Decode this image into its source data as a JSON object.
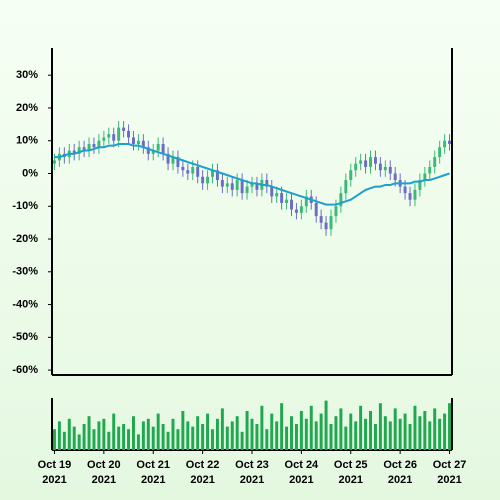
{
  "chart_data": {
    "type": "candlestick",
    "x": [
      0,
      0.1,
      0.2,
      0.3,
      0.4,
      0.5,
      0.6,
      0.7,
      0.8,
      0.9,
      1,
      1.1,
      1.2,
      1.3,
      1.4,
      1.5,
      1.6,
      1.7,
      1.8,
      1.9,
      2,
      2.1,
      2.2,
      2.3,
      2.4,
      2.5,
      2.6,
      2.7,
      2.8,
      2.9,
      3,
      3.1,
      3.2,
      3.3,
      3.4,
      3.5,
      3.6,
      3.7,
      3.8,
      3.9,
      4,
      4.1,
      4.2,
      4.3,
      4.4,
      4.5,
      4.6,
      4.7,
      4.8,
      4.9,
      5,
      5.1,
      5.2,
      5.3,
      5.4,
      5.5,
      5.6,
      5.7,
      5.8,
      5.9,
      6,
      6.1,
      6.2,
      6.3,
      6.4,
      6.5,
      6.6,
      6.7,
      6.8,
      6.9,
      7,
      7.1,
      7.2,
      7.3,
      7.4,
      7.5,
      7.6,
      7.7,
      7.8,
      7.9,
      8
    ],
    "open": [
      3,
      4,
      6,
      5,
      7,
      6,
      8,
      7,
      9,
      8,
      10,
      11,
      12,
      10,
      14,
      13,
      11,
      9,
      10,
      8,
      6,
      7,
      9,
      6,
      3,
      5,
      2,
      1,
      0,
      2,
      -1,
      -3,
      -1,
      1,
      -2,
      -4,
      -3,
      -5,
      -2,
      -6,
      -4,
      -3,
      -5,
      -2,
      -4,
      -7,
      -6,
      -9,
      -8,
      -11,
      -12,
      -10,
      -7,
      -9,
      -13,
      -15,
      -17,
      -13,
      -10,
      -6,
      -2,
      1,
      3,
      4,
      2,
      5,
      3,
      1,
      2,
      0,
      -2,
      -4,
      -6,
      -8,
      -5,
      -2,
      0,
      2,
      5,
      8,
      10
    ],
    "high": [
      6,
      8,
      8,
      9,
      9,
      10,
      10,
      11,
      11,
      12,
      13,
      14,
      14,
      16,
      16,
      15,
      13,
      12,
      12,
      10,
      9,
      11,
      11,
      8,
      7,
      7,
      4,
      3,
      4,
      4,
      1,
      1,
      3,
      3,
      0,
      -1,
      -1,
      0,
      0,
      -2,
      -1,
      -1,
      0,
      0,
      -2,
      -4,
      -4,
      -6,
      -6,
      -9,
      -8,
      -5,
      -5,
      -7,
      -11,
      -13,
      -11,
      -8,
      -4,
      0,
      3,
      5,
      6,
      6,
      7,
      7,
      5,
      4,
      4,
      2,
      0,
      -2,
      -4,
      -3,
      0,
      2,
      4,
      7,
      10,
      12,
      12
    ],
    "low": [
      1,
      2,
      3,
      3,
      4,
      4,
      5,
      5,
      6,
      6,
      8,
      9,
      8,
      8,
      11,
      9,
      7,
      7,
      6,
      4,
      4,
      5,
      4,
      1,
      1,
      0,
      -1,
      -2,
      -2,
      -3,
      -5,
      -5,
      -3,
      -4,
      -6,
      -6,
      -7,
      -7,
      -8,
      -8,
      -6,
      -7,
      -7,
      -6,
      -9,
      -9,
      -11,
      -11,
      -13,
      -14,
      -14,
      -12,
      -11,
      -15,
      -17,
      -19,
      -19,
      -15,
      -12,
      -8,
      -4,
      -1,
      1,
      0,
      0,
      1,
      -1,
      -1,
      -2,
      -4,
      -6,
      -8,
      -10,
      -10,
      -7,
      -4,
      -2,
      0,
      3,
      6,
      7
    ],
    "close": [
      4,
      6,
      5,
      7,
      6,
      8,
      7,
      9,
      8,
      10,
      11,
      12,
      10,
      14,
      13,
      11,
      9,
      10,
      8,
      6,
      7,
      9,
      6,
      3,
      5,
      2,
      1,
      0,
      2,
      -1,
      -3,
      -1,
      1,
      -2,
      -4,
      -3,
      -5,
      -2,
      -6,
      -4,
      -3,
      -5,
      -2,
      -4,
      -7,
      -6,
      -9,
      -8,
      -11,
      -12,
      -10,
      -7,
      -9,
      -13,
      -15,
      -17,
      -13,
      -10,
      -6,
      -2,
      1,
      3,
      4,
      2,
      5,
      3,
      1,
      2,
      0,
      -2,
      -4,
      -6,
      -8,
      -5,
      -2,
      0,
      2,
      5,
      8,
      10,
      9
    ],
    "ma": [
      5,
      5,
      5.5,
      6,
      6,
      6.5,
      7,
      7,
      7.5,
      8,
      8,
      8.5,
      8.5,
      9,
      9,
      9,
      8.5,
      8.5,
      8,
      7.5,
      7,
      6.5,
      6,
      5.5,
      5,
      4.5,
      4,
      3.5,
      3,
      2.5,
      2,
      1.5,
      1,
      0.5,
      0,
      -0.5,
      -1,
      -1.5,
      -2,
      -2.5,
      -3,
      -3,
      -3.5,
      -3.5,
      -4,
      -4.5,
      -5,
      -5.5,
      -6,
      -6.5,
      -7,
      -7.5,
      -8,
      -8.5,
      -9,
      -9.5,
      -9.5,
      -9.5,
      -9,
      -8.5,
      -8,
      -7,
      -6,
      -5,
      -4.5,
      -4,
      -4,
      -3.5,
      -3.5,
      -3,
      -3,
      -3,
      -3,
      -2.5,
      -2.5,
      -2,
      -2,
      -1.5,
      -1,
      -0.5,
      0
    ],
    "volume": [
      40,
      55,
      35,
      60,
      45,
      30,
      50,
      65,
      40,
      55,
      60,
      35,
      70,
      45,
      50,
      40,
      65,
      30,
      55,
      60,
      45,
      70,
      50,
      35,
      60,
      40,
      75,
      55,
      45,
      65,
      50,
      70,
      40,
      60,
      80,
      45,
      55,
      65,
      35,
      75,
      60,
      50,
      85,
      40,
      70,
      55,
      90,
      45,
      65,
      50,
      75,
      60,
      85,
      55,
      70,
      95,
      50,
      65,
      80,
      45,
      70,
      55,
      85,
      60,
      75,
      50,
      90,
      65,
      55,
      80,
      60,
      70,
      50,
      85,
      65,
      75,
      55,
      80,
      60,
      70,
      90
    ],
    "up_color": "#3cb878",
    "down_color": "#6c6cc8",
    "ma_color": "#1e9fcc",
    "volume_color": "#1fa84f",
    "xlim": [
      -0.05,
      8.05
    ],
    "xticks": [
      {
        "value": 0,
        "label": "Oct 19\n2021"
      },
      {
        "value": 1,
        "label": "Oct 20\n2021"
      },
      {
        "value": 2,
        "label": "Oct 21\n2021"
      },
      {
        "value": 3,
        "label": "Oct 22\n2021"
      },
      {
        "value": 4,
        "label": "Oct 23\n2021"
      },
      {
        "value": 5,
        "label": "Oct 24\n2021"
      },
      {
        "value": 6,
        "label": "Oct 25\n2021"
      },
      {
        "value": 7,
        "label": "Oct 26\n2021"
      },
      {
        "value": 8,
        "label": "Oct 27\n2021"
      }
    ],
    "ylim": [
      -61.5,
      38.3
    ],
    "yticks": [
      {
        "value": 30,
        "label": "30%"
      },
      {
        "value": 20,
        "label": "20%"
      },
      {
        "value": 10,
        "label": "10%"
      },
      {
        "value": 0,
        "label": "0%"
      },
      {
        "value": -10,
        "label": "-10%"
      },
      {
        "value": -20,
        "label": "-20%"
      },
      {
        "value": -30,
        "label": "-30%"
      },
      {
        "value": -40,
        "label": "-40%"
      },
      {
        "value": -50,
        "label": "-50%"
      },
      {
        "value": -60,
        "label": "-60%"
      }
    ],
    "volume_ylim": [
      0,
      100
    ]
  }
}
